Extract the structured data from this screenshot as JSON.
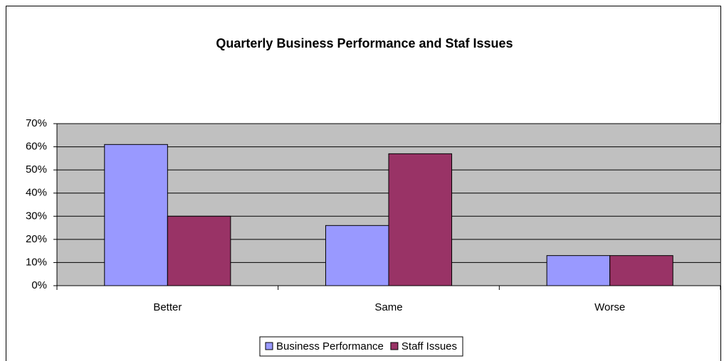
{
  "chart_data": {
    "type": "bar",
    "title": "Quarterly Business Performance and Staf Issues",
    "categories": [
      "Better",
      "Same",
      "Worse"
    ],
    "series": [
      {
        "name": "Business Performance",
        "color": "#9999ff",
        "values": [
          61,
          26,
          13
        ]
      },
      {
        "name": "Staff Issues",
        "color": "#993366",
        "values": [
          30,
          57,
          13
        ]
      }
    ],
    "ylim": [
      0,
      70
    ],
    "yticks": [
      {
        "value": 0,
        "label": "0%"
      },
      {
        "value": 10,
        "label": "10%"
      },
      {
        "value": 20,
        "label": "20%"
      },
      {
        "value": 30,
        "label": "30%"
      },
      {
        "value": 40,
        "label": "40%"
      },
      {
        "value": 50,
        "label": "50%"
      },
      {
        "value": 60,
        "label": "60%"
      },
      {
        "value": 70,
        "label": "70%"
      }
    ],
    "grid": true,
    "legend": "bottom"
  }
}
